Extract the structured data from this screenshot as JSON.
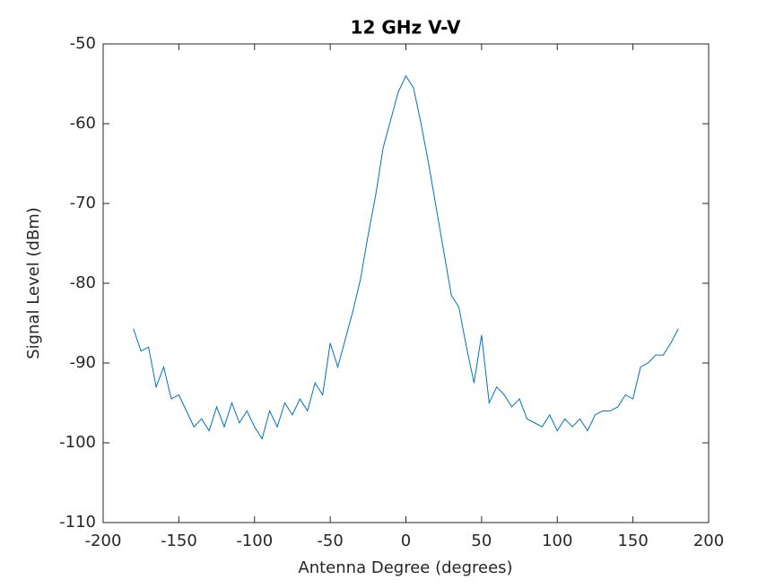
{
  "chart_data": {
    "type": "line",
    "title": "12 GHz V-V",
    "x_label": "Antenna Degree (degrees)",
    "y_label": "Signal Level (dBm)",
    "x": [
      -180,
      -175,
      -170,
      -165,
      -160,
      -155,
      -150,
      -145,
      -140,
      -135,
      -130,
      -125,
      -120,
      -115,
      -110,
      -105,
      -100,
      -95,
      -90,
      -85,
      -80,
      -75,
      -70,
      -65,
      -60,
      -55,
      -50,
      -45,
      -40,
      -35,
      -30,
      -25,
      -20,
      -15,
      -10,
      -5,
      0,
      5,
      10,
      15,
      20,
      25,
      30,
      35,
      40,
      45,
      50,
      55,
      60,
      65,
      70,
      75,
      80,
      85,
      90,
      95,
      100,
      105,
      110,
      115,
      120,
      125,
      130,
      135,
      140,
      145,
      150,
      155,
      160,
      165,
      170,
      175,
      180
    ],
    "series": [
      {
        "name": "Signal",
        "color": "#0072bd",
        "values": [
          -85.7,
          -88.5,
          -88,
          -93,
          -90.5,
          -94.5,
          -94,
          -96,
          -98,
          -97,
          -98.5,
          -95.5,
          -98,
          -95,
          -97.5,
          -96,
          -98,
          -99.5,
          -96,
          -98,
          -95,
          -96.5,
          -94.5,
          -96,
          -92.5,
          -94,
          -87.5,
          -90.5,
          -87,
          -83.5,
          -79.5,
          -74,
          -69,
          -63,
          -59.5,
          -56,
          -54,
          -55.5,
          -60,
          -65,
          -70.5,
          -76,
          -81.5,
          -83,
          -88,
          -92.5,
          -86.5,
          -95,
          -93,
          -94,
          -95.5,
          -94.5,
          -97,
          -97.5,
          -98,
          -96.5,
          -98.5,
          -97,
          -98,
          -97,
          -98.5,
          -96.5,
          -96,
          -96,
          -95.5,
          -94,
          -94.5,
          -90.5,
          -90,
          -89,
          -89,
          -87.5,
          -85.7
        ]
      }
    ],
    "xlim": [
      -200,
      200
    ],
    "ylim": [
      -110,
      -50
    ],
    "xticks": [
      -200,
      -150,
      -100,
      -50,
      0,
      50,
      100,
      150,
      200
    ],
    "yticks": [
      -110,
      -100,
      -90,
      -80,
      -70,
      -60,
      -50
    ],
    "grid": false
  }
}
